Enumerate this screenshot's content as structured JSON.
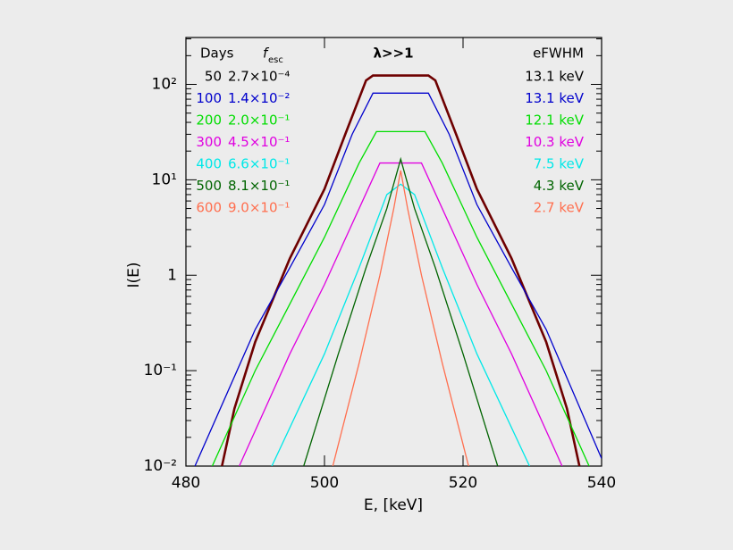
{
  "chart_data": {
    "type": "line",
    "title": "λ>>1",
    "xlabel": "E, [keV]",
    "ylabel": "I(E)",
    "legend_headers": {
      "days": "Days",
      "fesc": "f",
      "fesc_sub": "esc",
      "fwhm": "eFWHM"
    },
    "log_y": true,
    "xlim": [
      480,
      540
    ],
    "ylim": [
      0.01,
      310
    ],
    "xticks": [
      480,
      500,
      520,
      540
    ],
    "yticks": [
      {
        "value": 0.01,
        "label": "10⁻²"
      },
      {
        "value": 0.1,
        "label": "10⁻¹"
      },
      1,
      {
        "value": 10,
        "label": "10¹"
      },
      {
        "value": 100,
        "label": "10²"
      }
    ],
    "series": [
      {
        "name": "50",
        "fesc": "2.7×10⁻⁴",
        "fwhm": "13.1 keV",
        "color": "#6e0000",
        "x": [
          485.2,
          487,
          490,
          495,
          500,
          503,
          506,
          507,
          515,
          516,
          519,
          522,
          527,
          532,
          535,
          536.8
        ],
        "values": [
          0.01,
          0.04,
          0.2,
          1.5,
          8,
          30,
          110,
          124,
          124,
          110,
          30,
          8,
          1.5,
          0.2,
          0.04,
          0.01
        ]
      },
      {
        "name": "100",
        "fesc": "1.4×10⁻²",
        "fwhm": "13.1 keV",
        "color": "#0000cc",
        "x": [
          481.3,
          490,
          495,
          500,
          504,
          507,
          515,
          518,
          522,
          527,
          532,
          540
        ],
        "values": [
          0.01,
          0.27,
          1.2,
          5.5,
          30,
          81,
          81,
          30,
          5.5,
          1.2,
          0.27,
          0.012
        ]
      },
      {
        "name": "200",
        "fesc": "2.0×10⁻¹",
        "fwhm": "12.1 keV",
        "color": "#00dd00",
        "x": [
          483.8,
          490,
          495,
          500,
          505,
          507.5,
          514.5,
          517,
          522,
          527,
          532,
          538.2
        ],
        "values": [
          0.01,
          0.1,
          0.5,
          2.5,
          15,
          32,
          32,
          15,
          2.5,
          0.5,
          0.1,
          0.01
        ]
      },
      {
        "name": "300",
        "fesc": "4.5×10⁻¹",
        "fwhm": "10.3 keV",
        "color": "#e000e0",
        "x": [
          487.7,
          495,
          500,
          505,
          508,
          514,
          517,
          522,
          527,
          534.3
        ],
        "values": [
          0.01,
          0.15,
          0.8,
          5,
          15,
          15,
          5,
          0.8,
          0.15,
          0.01
        ]
      },
      {
        "name": "400",
        "fesc": "6.6×10⁻¹",
        "fwhm": "7.5 keV",
        "color": "#00e8e8",
        "x": [
          492.4,
          500,
          505,
          509,
          511,
          513,
          517,
          522,
          529.6
        ],
        "values": [
          0.01,
          0.15,
          1.2,
          7,
          9,
          7,
          1.2,
          0.15,
          0.01
        ]
      },
      {
        "name": "500",
        "fesc": "8.1×10⁻¹",
        "fwhm": "4.3 keV",
        "color": "#006400",
        "x": [
          497,
          502,
          506,
          509,
          511,
          513,
          516,
          520,
          525
        ],
        "values": [
          0.01,
          0.15,
          1.2,
          5,
          16.5,
          5,
          1.2,
          0.15,
          0.01
        ]
      },
      {
        "name": "600",
        "fesc": "9.0×10⁻¹",
        "fwhm": "2.7 keV",
        "color": "#ff6f4f",
        "x": [
          501.2,
          505,
          508,
          510,
          511,
          512,
          514,
          517,
          520.8
        ],
        "values": [
          0.01,
          0.12,
          1,
          5,
          12.5,
          5,
          1,
          0.12,
          0.01
        ]
      }
    ]
  }
}
